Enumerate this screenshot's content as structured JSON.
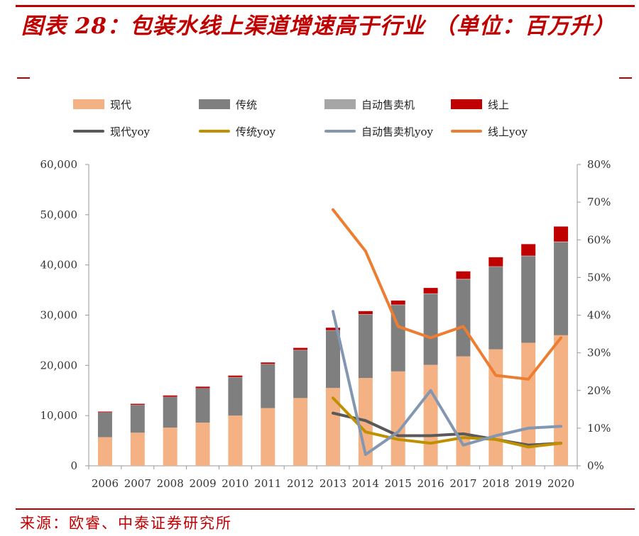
{
  "header": {
    "title": "图表 28：包装水线上渠道增速高于行业 （单位：百万升）"
  },
  "footer": {
    "source": "来源：欧睿、中泰证券研究所"
  },
  "colors": {
    "accent": "#c00000",
    "modern": "#f4b183",
    "traditional": "#7f7f7f",
    "vending": "#a6a6a6",
    "online": "#c00000",
    "modern_yoy": "#595959",
    "traditional_yoy": "#bf9000",
    "vending_yoy": "#8497b0",
    "online_yoy": "#ed7d31"
  },
  "legend": {
    "items": [
      {
        "label": "现代",
        "kind": "bar",
        "color": "#f4b183"
      },
      {
        "label": "传统",
        "kind": "bar",
        "color": "#7f7f7f"
      },
      {
        "label": "自动售卖机",
        "kind": "bar",
        "color": "#a6a6a6"
      },
      {
        "label": "线上",
        "kind": "bar",
        "color": "#c00000"
      },
      {
        "label": "现代yoy",
        "kind": "line",
        "color": "#595959"
      },
      {
        "label": "传统yoy",
        "kind": "line",
        "color": "#bf9000"
      },
      {
        "label": "自动售卖机yoy",
        "kind": "line",
        "color": "#8497b0"
      },
      {
        "label": "线上yoy",
        "kind": "line",
        "color": "#ed7d31"
      }
    ]
  },
  "chart_data": {
    "type": "bar",
    "stacked": true,
    "categories": [
      "2006",
      "2007",
      "2008",
      "2009",
      "2010",
      "2011",
      "2012",
      "2013",
      "2014",
      "2015",
      "2016",
      "2017",
      "2018",
      "2019",
      "2020"
    ],
    "series": [
      {
        "name": "现代",
        "axis": "left",
        "color": "#f4b183",
        "values": [
          5700,
          6600,
          7600,
          8600,
          10000,
          11500,
          13500,
          15500,
          17500,
          18800,
          20100,
          21800,
          23200,
          24500,
          26000
        ]
      },
      {
        "name": "传统",
        "axis": "left",
        "color": "#7f7f7f",
        "values": [
          4900,
          5500,
          6100,
          6800,
          7600,
          8700,
          9500,
          11400,
          12600,
          13200,
          14100,
          15300,
          16400,
          17200,
          18500
        ]
      },
      {
        "name": "自动售卖机",
        "axis": "left",
        "color": "#a6a6a6",
        "values": [
          50,
          50,
          60,
          60,
          70,
          80,
          90,
          100,
          100,
          110,
          120,
          120,
          130,
          140,
          150
        ]
      },
      {
        "name": "线上",
        "axis": "left",
        "color": "#c00000",
        "values": [
          150,
          200,
          250,
          300,
          300,
          300,
          400,
          500,
          600,
          800,
          1100,
          1500,
          1800,
          2300,
          3000
        ]
      }
    ],
    "lines": [
      {
        "name": "现代yoy",
        "axis": "right",
        "color": "#595959",
        "values": [
          null,
          null,
          null,
          null,
          null,
          null,
          null,
          0.14,
          0.12,
          0.08,
          0.08,
          0.085,
          0.07,
          0.055,
          0.06
        ]
      },
      {
        "name": "传统yoy",
        "axis": "right",
        "color": "#bf9000",
        "values": [
          null,
          null,
          null,
          null,
          null,
          null,
          null,
          0.18,
          0.09,
          0.07,
          0.06,
          0.075,
          0.07,
          0.05,
          0.06
        ]
      },
      {
        "name": "自动售卖机yoy",
        "axis": "right",
        "color": "#8497b0",
        "values": [
          null,
          null,
          null,
          null,
          null,
          null,
          null,
          0.41,
          0.03,
          0.09,
          0.2,
          0.055,
          0.08,
          0.1,
          0.105
        ]
      },
      {
        "name": "线上yoy",
        "axis": "right",
        "color": "#ed7d31",
        "values": [
          null,
          null,
          null,
          null,
          null,
          null,
          null,
          0.68,
          0.57,
          0.37,
          0.34,
          0.37,
          0.24,
          0.23,
          0.34
        ]
      }
    ],
    "y_left": {
      "min": 0,
      "max": 60000,
      "ticks": [
        "0",
        "10,000",
        "20,000",
        "30,000",
        "40,000",
        "50,000",
        "60,000"
      ]
    },
    "y_right": {
      "min": 0,
      "max": 0.8,
      "ticks": [
        "0%",
        "10%",
        "20%",
        "30%",
        "40%",
        "50%",
        "60%",
        "70%",
        "80%"
      ]
    },
    "grid": false,
    "legend_position": "top"
  }
}
